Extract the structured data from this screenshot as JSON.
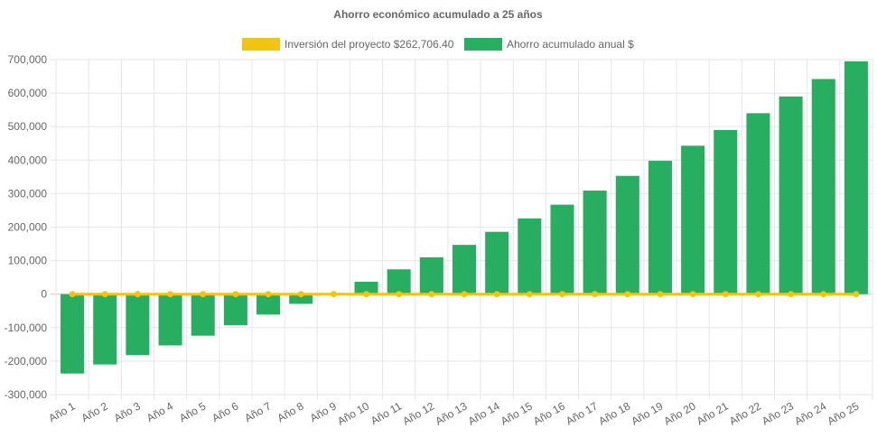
{
  "chart_data": {
    "type": "bar",
    "title": "Ahorro económico acumulado a 25 años",
    "categories": [
      "Año 1",
      "Año 2",
      "Año 3",
      "Año 4",
      "Año 5",
      "Año 6",
      "Año 7",
      "Año 8",
      "Año 9",
      "Año 10",
      "Año 11",
      "Año 12",
      "Año 13",
      "Año 14",
      "Año 15",
      "Año 16",
      "Año 17",
      "Año 18",
      "Año 19",
      "Año 20",
      "Año 21",
      "Año 22",
      "Año 23",
      "Año 24",
      "Año 25"
    ],
    "series": [
      {
        "name": "Inversión del proyecto $262,706.40",
        "type": "line",
        "color": "#f1c40f",
        "values": [
          0,
          0,
          0,
          0,
          0,
          0,
          0,
          0,
          0,
          0,
          0,
          0,
          0,
          0,
          0,
          0,
          0,
          0,
          0,
          0,
          0,
          0,
          0,
          0,
          0
        ]
      },
      {
        "name": "Ahorro acumulado anual $",
        "type": "bar",
        "color": "#27ae60",
        "values": [
          -237000,
          -210000,
          -182000,
          -153000,
          -124000,
          -93000,
          -61000,
          -29000,
          0,
          37000,
          74000,
          110000,
          147000,
          186000,
          226000,
          267000,
          309000,
          353000,
          398000,
          443000,
          490000,
          540000,
          590000,
          642000,
          695000
        ]
      }
    ],
    "yticks": [
      "700,000",
      "600,000",
      "500,000",
      "400,000",
      "300,000",
      "200,000",
      "100,000",
      "0",
      "-100,000",
      "-200,000",
      "-300,000"
    ],
    "ylim": [
      -300000,
      700000
    ],
    "grid": true,
    "legend_position": "top"
  }
}
